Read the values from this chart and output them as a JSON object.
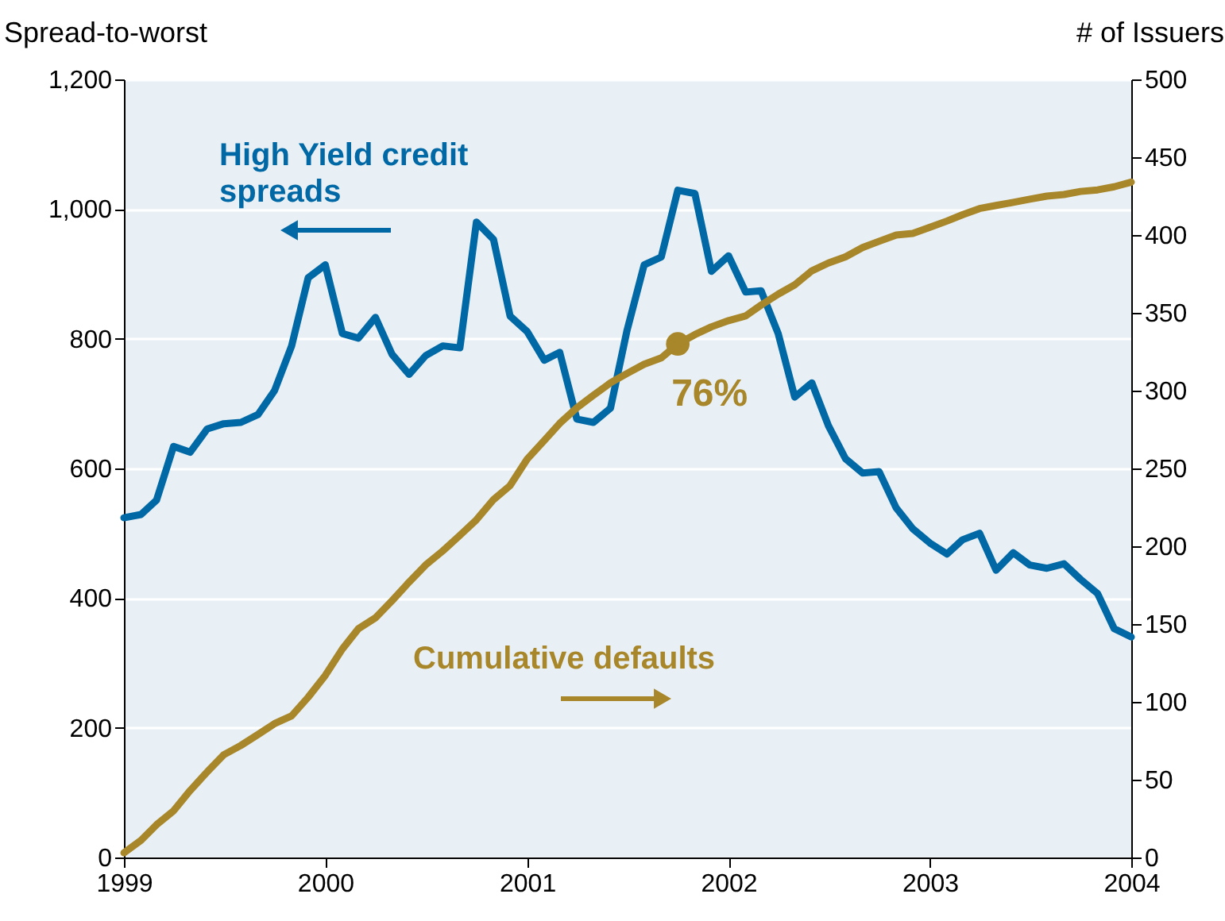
{
  "chart_data": {
    "type": "line",
    "x": [
      "1999-01",
      "1999-02",
      "1999-03",
      "1999-04",
      "1999-05",
      "1999-06",
      "1999-07",
      "1999-08",
      "1999-09",
      "1999-10",
      "1999-11",
      "1999-12",
      "2000-01",
      "2000-02",
      "2000-03",
      "2000-04",
      "2000-05",
      "2000-06",
      "2000-07",
      "2000-08",
      "2000-09",
      "2000-10",
      "2000-11",
      "2000-12",
      "2001-01",
      "2001-02",
      "2001-03",
      "2001-04",
      "2001-05",
      "2001-06",
      "2001-07",
      "2001-08",
      "2001-09",
      "2001-10",
      "2001-11",
      "2001-12",
      "2002-01",
      "2002-02",
      "2002-03",
      "2002-04",
      "2002-05",
      "2002-06",
      "2002-07",
      "2002-08",
      "2002-09",
      "2002-10",
      "2002-11",
      "2002-12",
      "2003-01",
      "2003-02",
      "2003-03",
      "2003-04",
      "2003-05",
      "2003-06",
      "2003-07",
      "2003-08",
      "2003-09",
      "2003-10",
      "2003-11",
      "2003-12",
      "2004-01"
    ],
    "series": [
      {
        "name": "High Yield credit spreads",
        "color": "#0069a5",
        "axis": "y",
        "values": [
          524,
          529,
          551,
          634,
          625,
          661,
          669,
          671,
          683,
          720,
          789,
          894,
          914,
          808,
          801,
          833,
          776,
          745,
          774,
          789,
          786,
          980,
          953,
          835,
          811,
          767,
          779,
          676,
          671,
          693,
          813,
          914,
          926,
          1029,
          1024,
          904,
          928,
          872,
          874,
          808,
          710,
          732,
          666,
          615,
          593,
          595,
          539,
          507,
          485,
          468,
          490,
          500,
          443,
          470,
          451,
          446,
          453,
          429,
          407,
          353,
          340
        ]
      },
      {
        "name": "Cumulative defaults",
        "color": "#a8862a",
        "axis": "y2",
        "values": [
          3,
          11,
          21,
          30,
          43,
          55,
          66,
          72,
          79,
          86,
          91,
          103,
          117,
          134,
          147,
          154,
          165,
          177,
          188,
          197,
          207,
          217,
          230,
          239,
          256,
          268,
          279,
          289,
          297,
          305,
          311,
          317,
          321,
          330,
          336,
          341,
          345,
          348,
          355,
          362,
          368,
          377,
          382,
          386,
          392,
          396,
          400,
          401,
          405,
          409,
          413,
          417,
          419,
          421,
          423,
          425,
          426,
          428,
          429,
          431,
          434
        ]
      }
    ],
    "ylabel": "Spread-to-worst",
    "y2label": "# of Issuers",
    "xlim": [
      "1999-01",
      "2004-01"
    ],
    "xticks": [
      {
        "value": "1999-01",
        "label": "1999"
      },
      {
        "value": "2000-01",
        "label": "2000"
      },
      {
        "value": "2001-01",
        "label": "2001"
      },
      {
        "value": "2002-01",
        "label": "2002"
      },
      {
        "value": "2003-01",
        "label": "2003"
      },
      {
        "value": "2004-01",
        "label": "2004"
      }
    ],
    "ylim": [
      0,
      1200
    ],
    "yticks": [
      0,
      200,
      400,
      600,
      800,
      {
        "value": 1000,
        "label": "1,000"
      },
      {
        "value": 1200,
        "label": "1,200"
      }
    ],
    "y2lim": [
      0,
      500
    ],
    "y2ticks": [
      0,
      50,
      100,
      150,
      200,
      250,
      300,
      350,
      400,
      450,
      500
    ],
    "annotations": [
      {
        "text": "76%",
        "x": "2001-10",
        "y": 792
      }
    ],
    "grid": "y",
    "marker": "none",
    "line_style": "solid"
  }
}
